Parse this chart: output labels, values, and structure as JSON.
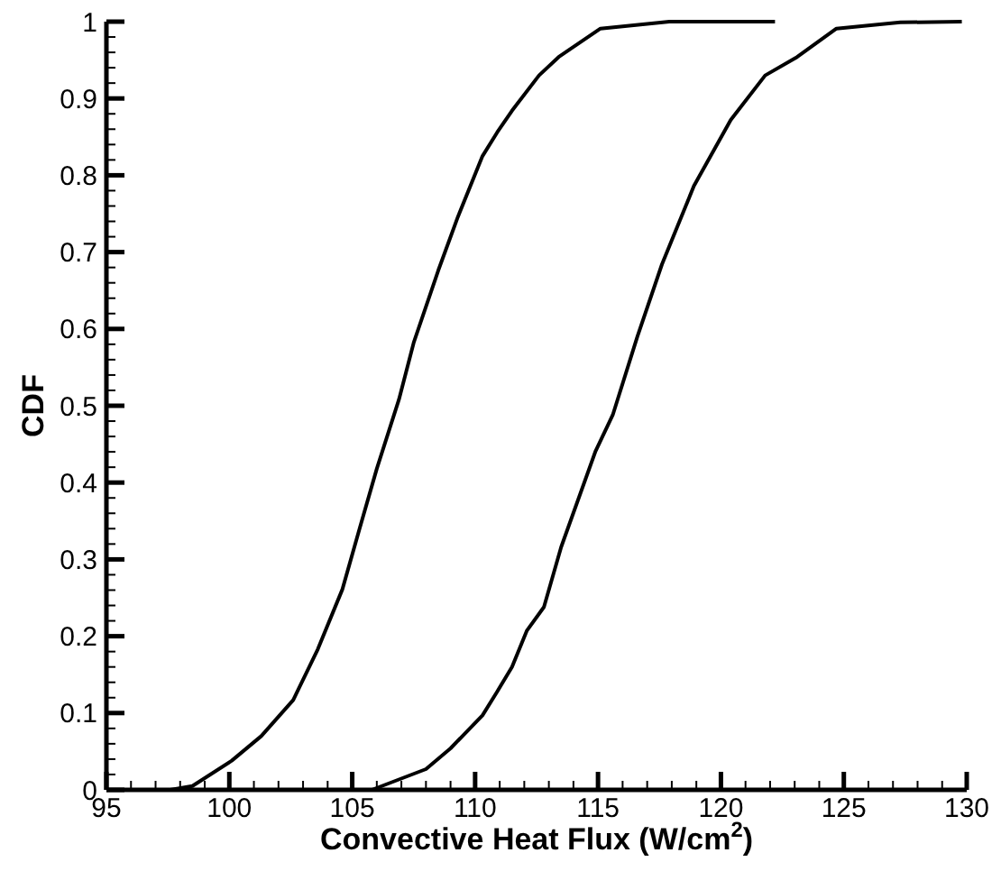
{
  "chart_data": {
    "type": "line",
    "xlabel": "Convective Heat Flux (W/cm$^{2}$)",
    "ylabel": "CDF",
    "xlim": [
      95,
      130
    ],
    "ylim": [
      0,
      1
    ],
    "marker": "none",
    "line_style": "solid",
    "grid": false,
    "xticks": [
      95,
      {
        "value": 96,
        "label": null
      },
      {
        "value": 97,
        "label": null
      },
      {
        "value": 98,
        "label": null
      },
      {
        "value": 99,
        "label": null
      },
      100,
      {
        "value": 101,
        "label": null
      },
      {
        "value": 102,
        "label": null
      },
      {
        "value": 103,
        "label": null
      },
      {
        "value": 104,
        "label": null
      },
      105,
      {
        "value": 106,
        "label": null
      },
      {
        "value": 107,
        "label": null
      },
      {
        "value": 108,
        "label": null
      },
      {
        "value": 109,
        "label": null
      },
      110,
      {
        "value": 111,
        "label": null
      },
      {
        "value": 112,
        "label": null
      },
      {
        "value": 113,
        "label": null
      },
      {
        "value": 114,
        "label": null
      },
      115,
      {
        "value": 116,
        "label": null
      },
      {
        "value": 117,
        "label": null
      },
      {
        "value": 118,
        "label": null
      },
      {
        "value": 119,
        "label": null
      },
      120,
      {
        "value": 121,
        "label": null
      },
      {
        "value": 122,
        "label": null
      },
      {
        "value": 123,
        "label": null
      },
      {
        "value": 124,
        "label": null
      },
      125,
      {
        "value": 126,
        "label": null
      },
      {
        "value": 127,
        "label": null
      },
      {
        "value": 128,
        "label": null
      },
      {
        "value": 129,
        "label": null
      },
      130
    ],
    "yticks": [
      0,
      {
        "value": 0.02,
        "label": null
      },
      {
        "value": 0.04,
        "label": null
      },
      {
        "value": 0.06,
        "label": null
      },
      {
        "value": 0.08,
        "label": null
      },
      0.1,
      {
        "value": 0.12,
        "label": null
      },
      {
        "value": 0.14,
        "label": null
      },
      {
        "value": 0.16,
        "label": null
      },
      {
        "value": 0.18,
        "label": null
      },
      0.2,
      {
        "value": 0.22,
        "label": null
      },
      {
        "value": 0.24,
        "label": null
      },
      {
        "value": 0.26,
        "label": null
      },
      {
        "value": 0.28,
        "label": null
      },
      0.3,
      {
        "value": 0.32,
        "label": null
      },
      {
        "value": 0.34,
        "label": null
      },
      {
        "value": 0.36,
        "label": null
      },
      {
        "value": 0.38,
        "label": null
      },
      0.4,
      {
        "value": 0.42,
        "label": null
      },
      {
        "value": 0.44,
        "label": null
      },
      {
        "value": 0.46,
        "label": null
      },
      {
        "value": 0.48,
        "label": null
      },
      0.5,
      {
        "value": 0.52,
        "label": null
      },
      {
        "value": 0.54,
        "label": null
      },
      {
        "value": 0.56,
        "label": null
      },
      {
        "value": 0.58,
        "label": null
      },
      0.6,
      {
        "value": 0.62,
        "label": null
      },
      {
        "value": 0.64,
        "label": null
      },
      {
        "value": 0.66,
        "label": null
      },
      {
        "value": 0.68,
        "label": null
      },
      0.7,
      {
        "value": 0.72,
        "label": null
      },
      {
        "value": 0.74,
        "label": null
      },
      {
        "value": 0.76,
        "label": null
      },
      {
        "value": 0.78,
        "label": null
      },
      0.8,
      {
        "value": 0.82,
        "label": null
      },
      {
        "value": 0.84,
        "label": null
      },
      {
        "value": 0.86,
        "label": null
      },
      {
        "value": 0.88,
        "label": null
      },
      0.9,
      {
        "value": 0.92,
        "label": null
      },
      {
        "value": 0.94,
        "label": null
      },
      {
        "value": 0.96,
        "label": null
      },
      {
        "value": 0.98,
        "label": null
      },
      1
    ],
    "series": [
      {
        "color": "#000000",
        "x": [
          97.6,
          98.5,
          100.1,
          101.3,
          102.6,
          103.6,
          104.6,
          105.3,
          106.0,
          106.9,
          107.5,
          108.5,
          109.3,
          110.3,
          110.9,
          111.5,
          112.6,
          113.4,
          115.1,
          117.9,
          122.2
        ],
        "values": [
          0,
          0.005,
          0.038,
          0.07,
          0.117,
          0.183,
          0.261,
          0.34,
          0.418,
          0.508,
          0.582,
          0.676,
          0.746,
          0.825,
          0.856,
          0.884,
          0.93,
          0.954,
          0.991,
          1,
          1
        ]
      },
      {
        "color": "#000000",
        "x": [
          105.8,
          108.0,
          109.0,
          110.3,
          110.9,
          111.5,
          112.1,
          112.8,
          113.5,
          114.9,
          115.6,
          116.6,
          117.6,
          118.9,
          120.4,
          121.8,
          123.1,
          124.7,
          127.3,
          129.8
        ],
        "values": [
          0,
          0.027,
          0.054,
          0.097,
          0.128,
          0.16,
          0.207,
          0.238,
          0.316,
          0.441,
          0.488,
          0.59,
          0.684,
          0.786,
          0.872,
          0.93,
          0.954,
          0.991,
          0.999,
          1
        ]
      }
    ]
  }
}
